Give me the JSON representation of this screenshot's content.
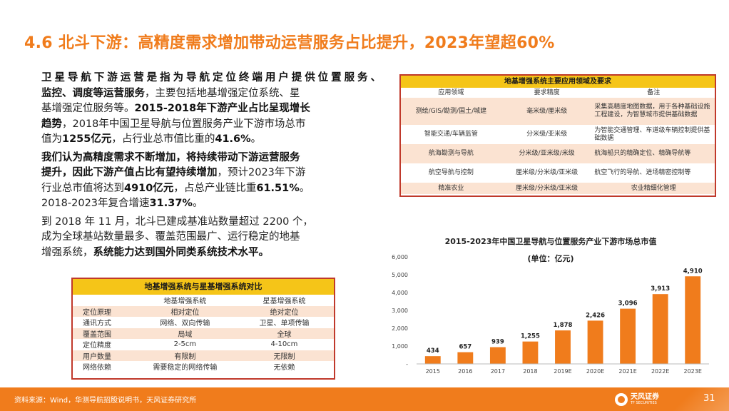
{
  "title": "4.6 北斗下游：高精度需求增加带动运营服务占比提升，2023年望超60%",
  "body": {
    "p1": {
      "l1": "卫星导航下游运营是指为导航定位终端用户提供位置服务、",
      "l2b": "监控、调度等运营服务",
      "l2n": "，主要包括地基增强定位系统、星",
      "l3n": "基增强定位服务等。",
      "l3b": "2015-2018年下游产业占比呈现增长",
      "l4b": "趋势",
      "l4n": "，2018年中国卫星导航与位置服务产业下游市场总市",
      "l5n": "值为",
      "l5b1": "1255亿元",
      "l5n2": "，占行业总市值比重的",
      "l5b2": "41.6%",
      "l5n3": "。"
    },
    "p2": {
      "l1b": "我们认为高精度需求不断增加，将持续带动下游运营服务",
      "l2b": "提升，因此下游产值占比有望持续增加",
      "l2n": "，预计2023年下游",
      "l3n": "行业总市值将达到",
      "l3b1": "4910亿元",
      "l3n2": "，占总产业链比重",
      "l3b2": "61.51%",
      "l3n3": "。",
      "l4n": "2018-2023年复合增速",
      "l4b": "31.37%",
      "l4n2": "。"
    },
    "p3": {
      "l1": "到 2018 年 11 月，北斗已建成基准站数量超过 2200 个，",
      "l2": "成为全球基站数量最多、覆盖范围最广、运行稳定的地基",
      "l3n": "增强系统，",
      "l3b": "系统能力达到国外同类系统技术水平。"
    }
  },
  "table1": {
    "caption": "地基增强系统主要应用领域及要求",
    "headers": [
      "应用领域",
      "要求精度",
      "备注"
    ],
    "rows": [
      [
        "测绘/GIS/勘测/国土/城建",
        "毫米级/厘米级",
        "采集高精度地图数据，用于各种基础设施工程建设，为智慧城市提供基础数据"
      ],
      [
        "智能交通/车辆监管",
        "分米级/亚米级",
        "为智能交通管理、车道级车辆控制提供基础数据"
      ],
      [
        "航海勘测与导航",
        "分米级/亚米级/米级",
        "航海船只的精确定位、精确导航等"
      ],
      [
        "航空导航与控制",
        "厘米级/分米级/亚米级",
        "航空飞行的导航、进场精密控制等"
      ],
      [
        "精准农业",
        "厘米级/分米级/亚米级",
        "农业精细化管理"
      ]
    ]
  },
  "table2": {
    "caption": "地基增强系统与星基增强系统对比",
    "headers": [
      "",
      "地基增强系统",
      "星基增强系统"
    ],
    "rows": [
      [
        "定位原理",
        "相对定位",
        "绝对定位"
      ],
      [
        "通讯方式",
        "网络、双向传输",
        "卫星、单项传输"
      ],
      [
        "覆盖范围",
        "局域",
        "全球"
      ],
      [
        "定位精度",
        "2-5cm",
        "4-10cm"
      ],
      [
        "用户数量",
        "有限制",
        "无限制"
      ],
      [
        "网络依赖",
        "需要稳定的网络传输",
        "无依赖"
      ]
    ]
  },
  "chart_data": {
    "type": "bar",
    "title": "2015-2023年中国卫星导航与位置服务产业下游市场总市值",
    "subtitle": "(单位：亿元)",
    "categories": [
      "2015",
      "2016",
      "2017",
      "2018",
      "2019E",
      "2020E",
      "2021E",
      "2022E",
      "2023E"
    ],
    "values": [
      434,
      657,
      939,
      1255,
      1878,
      2426,
      3096,
      3913,
      4910
    ],
    "data_labels": [
      "434",
      "657",
      "939",
      "1,255",
      "1,878",
      "2,426",
      "3,096",
      "3,913",
      "4,910"
    ],
    "y_ticks": [
      "-",
      "1,000",
      "2,000",
      "3,000",
      "4,000",
      "5,000",
      "6,000"
    ],
    "ylim": [
      0,
      6000
    ],
    "bar_color": "#f07c1c",
    "grid": false,
    "legend": "none"
  },
  "footer": {
    "source": "资料来源：Wind，华测导航招股说明书，天风证券研究所",
    "logo_cn": "天风证券",
    "logo_en": "TF SECURITIES",
    "page": "31"
  },
  "colors": {
    "accent": "#f07c1c",
    "table_border": "#c0392b",
    "table_caption": "#f5c518",
    "table_alt_row": "#fbe3d2"
  }
}
